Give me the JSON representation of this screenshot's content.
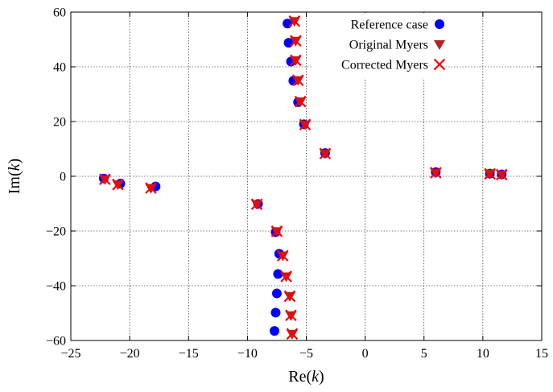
{
  "chart_data": {
    "type": "scatter",
    "xlabel": "Re(k)",
    "xlabel_parts": [
      "Re(",
      "k",
      ")"
    ],
    "ylabel": "Im(k)",
    "ylabel_parts": [
      "Im(",
      "k",
      ")"
    ],
    "xlim": [
      -25,
      15
    ],
    "ylim": [
      -60,
      60
    ],
    "xticks": [
      -25,
      -20,
      -15,
      -10,
      -5,
      0,
      5,
      10,
      15
    ],
    "yticks": [
      -60,
      -40,
      -20,
      0,
      20,
      40,
      60
    ],
    "xtick_labels": [
      "−25",
      "−20",
      "−15",
      "−10",
      "−5",
      "0",
      "5",
      "10",
      "15"
    ],
    "ytick_labels": [
      "−60",
      "−40",
      "−20",
      "0",
      "20",
      "40",
      "60"
    ],
    "grid": true,
    "legend_position": "top-right",
    "series": [
      {
        "name": "Reference case",
        "marker": "circle",
        "color": "#0000ff",
        "points": [
          [
            -6.6,
            55.8
          ],
          [
            -6.5,
            48.8
          ],
          [
            -6.3,
            41.9
          ],
          [
            -6.1,
            34.9
          ],
          [
            -5.7,
            27.1
          ],
          [
            -5.2,
            19.0
          ],
          [
            -3.4,
            8.5
          ],
          [
            6.0,
            1.5
          ],
          [
            10.6,
            1.0
          ],
          [
            11.6,
            0.7
          ],
          [
            -22.2,
            -0.8
          ],
          [
            -20.8,
            -2.7
          ],
          [
            -17.8,
            -3.7
          ],
          [
            -9.1,
            -10.1
          ],
          [
            -7.6,
            -20.4
          ],
          [
            -7.3,
            -28.3
          ],
          [
            -7.4,
            -35.7
          ],
          [
            -7.5,
            -42.8
          ],
          [
            -7.6,
            -49.8
          ],
          [
            -7.7,
            -56.5
          ]
        ]
      },
      {
        "name": "Original Myers",
        "marker": "triangle-down",
        "color": "#b22222",
        "points": [
          [
            -6.0,
            56.7
          ],
          [
            -5.9,
            49.5
          ],
          [
            -5.9,
            42.4
          ],
          [
            -5.7,
            35.1
          ],
          [
            -5.5,
            27.3
          ],
          [
            -5.1,
            18.9
          ],
          [
            -3.4,
            8.3
          ],
          [
            6.0,
            1.3
          ],
          [
            10.6,
            0.9
          ],
          [
            11.6,
            0.6
          ],
          [
            -22.1,
            -1.1
          ],
          [
            -21.0,
            -3.0
          ],
          [
            -18.2,
            -4.3
          ],
          [
            -9.2,
            -10.2
          ],
          [
            -7.5,
            -20.1
          ],
          [
            -7.0,
            -29.0
          ],
          [
            -6.7,
            -36.6
          ],
          [
            -6.4,
            -43.8
          ],
          [
            -6.3,
            -50.8
          ],
          [
            -6.2,
            -57.6
          ]
        ]
      },
      {
        "name": "Corrected Myers",
        "marker": "x",
        "color": "#ff0000",
        "points": [
          [
            -6.0,
            56.7
          ],
          [
            -5.9,
            49.5
          ],
          [
            -5.9,
            42.4
          ],
          [
            -5.7,
            35.1
          ],
          [
            -5.5,
            27.3
          ],
          [
            -5.1,
            18.9
          ],
          [
            -3.4,
            8.3
          ],
          [
            6.0,
            1.3
          ],
          [
            10.6,
            0.9
          ],
          [
            11.6,
            0.6
          ],
          [
            -22.1,
            -1.1
          ],
          [
            -21.0,
            -3.0
          ],
          [
            -18.2,
            -4.3
          ],
          [
            -9.2,
            -10.2
          ],
          [
            -7.5,
            -20.1
          ],
          [
            -7.0,
            -29.0
          ],
          [
            -6.7,
            -36.6
          ],
          [
            -6.4,
            -43.8
          ],
          [
            -6.3,
            -50.8
          ],
          [
            -6.2,
            -57.6
          ]
        ]
      }
    ]
  }
}
